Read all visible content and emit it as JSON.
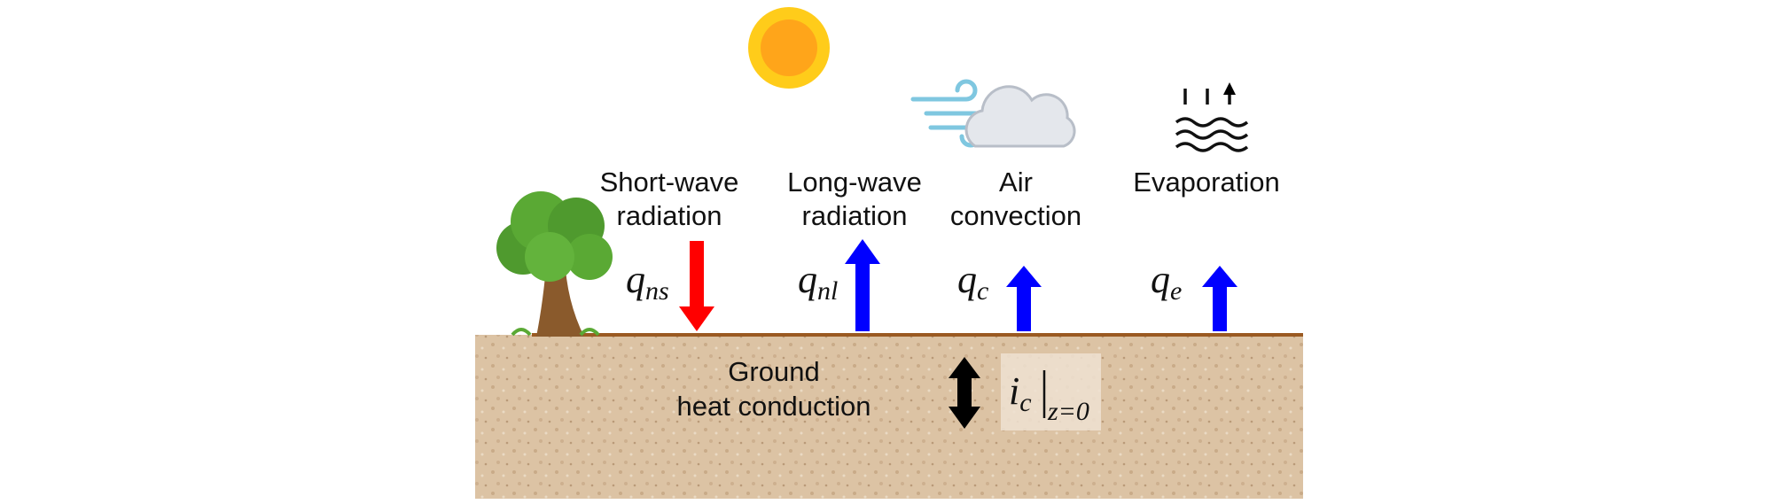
{
  "labels": {
    "short_wave": [
      "Short-wave",
      "radiation"
    ],
    "long_wave": [
      "Long-wave",
      "radiation"
    ],
    "air_convection": [
      "Air",
      "convection"
    ],
    "evaporation": [
      "Evaporation"
    ],
    "ground": [
      "Ground",
      "heat conduction"
    ]
  },
  "symbols": {
    "q_ns": {
      "symbol": "q",
      "subscript": "ns"
    },
    "q_nl": {
      "symbol": "q",
      "subscript": "nl"
    },
    "q_c": {
      "symbol": "q",
      "subscript": "c"
    },
    "q_e": {
      "symbol": "q",
      "subscript": "e"
    },
    "i_c": {
      "symbol": "i",
      "subscript": "c",
      "bar_subscript": "z=0"
    }
  }
}
